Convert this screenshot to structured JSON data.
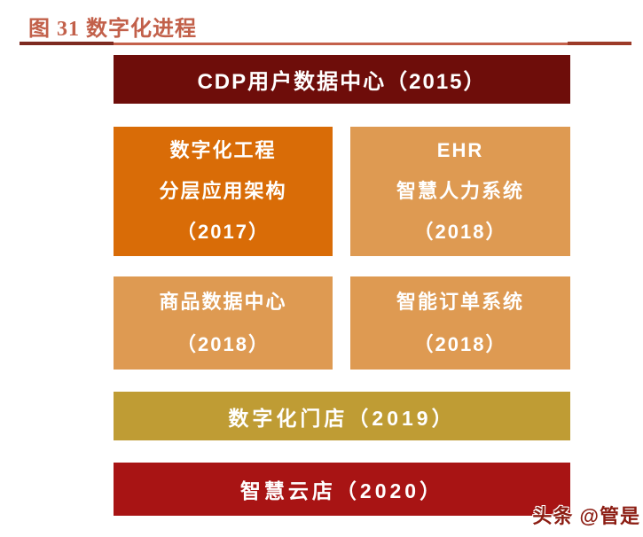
{
  "figure_header": {
    "title": "图 31 数字化进程"
  },
  "colors": {
    "title_text": "#c2604a",
    "rule_dark": "#7d2a21",
    "rule_light": "#c4614b",
    "rule_end": "#9c3a28",
    "maroon": "#6e0d0a",
    "orange": "#d96c07",
    "tan": "#de9a52",
    "gold": "#bf9c34",
    "red": "#a81414",
    "box_text": "#ffffff"
  },
  "boxes": [
    {
      "lines": [
        "CDP用户数据中心（2015）"
      ],
      "color": "#6e0d0a"
    },
    {
      "lines": [
        "数字化工程",
        "分层应用架构",
        "（2017）"
      ],
      "color": "#d96c07"
    },
    {
      "lines": [
        "EHR",
        "智慧人力系统",
        "（2018）"
      ],
      "color": "#de9a52"
    },
    {
      "lines": [
        "商品数据中心",
        "（2018）"
      ],
      "color": "#de9a52"
    },
    {
      "lines": [
        "智能订单系统",
        "（2018）"
      ],
      "color": "#de9a52"
    },
    {
      "lines": [
        "数字化门店（2019）"
      ],
      "color": "#bf9c34"
    },
    {
      "lines": [
        "智慧云店（2020）"
      ],
      "color": "#a81414"
    }
  ],
  "watermark": {
    "text": "头条 @管是"
  }
}
